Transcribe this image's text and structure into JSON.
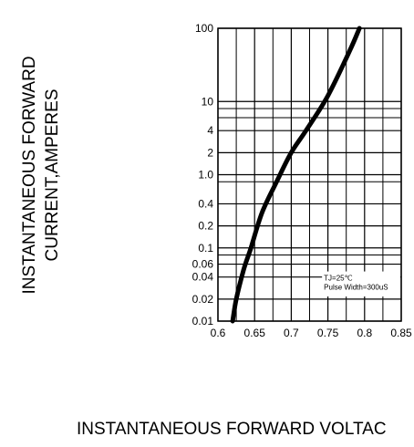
{
  "chart_data": {
    "type": "line",
    "title": "",
    "ylabel_lines": [
      "INSTANTANEOUS FORWARD",
      "CURRENT,AMPERES"
    ],
    "xlabel": "INSTANTANEOUS FORWARD VOLTAC",
    "x_scale": "linear",
    "y_scale": "log",
    "xlim": [
      0.6,
      0.85
    ],
    "ylim": [
      0.01,
      100
    ],
    "x_ticks": [
      0.6,
      0.65,
      0.7,
      0.75,
      0.8,
      0.85
    ],
    "x_tick_labels": [
      "0.6",
      "0.65",
      "0.7",
      "0.75",
      "0.8",
      "0.85"
    ],
    "y_ticks": [
      0.01,
      0.02,
      0.04,
      0.06,
      0.1,
      0.2,
      0.4,
      1.0,
      2,
      4,
      10,
      100
    ],
    "y_tick_labels": [
      "0.01",
      "0.02",
      "0.04",
      "0.06",
      "0.1",
      "0.2",
      "0.4",
      "1.0",
      "2",
      "4",
      "10",
      "100"
    ],
    "grid": true,
    "annotations": [
      "TJ=25℃",
      "Pulse Width=300uS"
    ],
    "series": [
      {
        "x": [
          0.62,
          0.625,
          0.635,
          0.645,
          0.66,
          0.68,
          0.7,
          0.72,
          0.75,
          0.78,
          0.793
        ],
        "y": [
          0.01,
          0.02,
          0.05,
          0.1,
          0.3,
          0.8,
          2,
          4,
          12,
          50,
          100
        ]
      }
    ]
  }
}
